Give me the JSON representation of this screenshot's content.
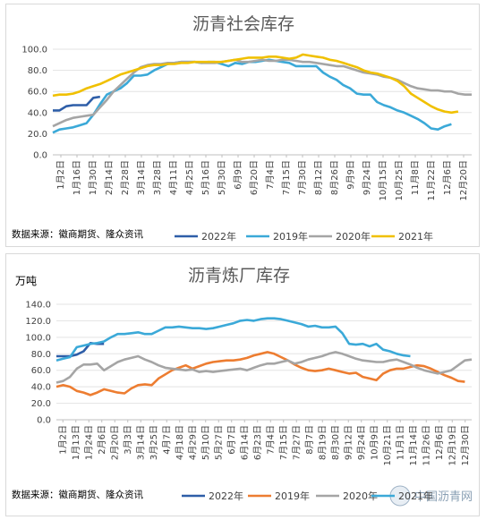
{
  "chart_data": [
    {
      "type": "line",
      "title": "沥青社会库存",
      "source": "数据来源：徽商期货、隆众资讯",
      "ylim": [
        0,
        100
      ],
      "yticks": [
        "0.0",
        "20.0",
        "40.0",
        "60.0",
        "80.0",
        "100.0"
      ],
      "xticks": [
        "1月2日",
        "1月16日",
        "1月30日",
        "2月14日",
        "2月28日",
        "3月14日",
        "3月28日",
        "4月11日",
        "4月25日",
        "5月16日",
        "5月30日",
        "6月9日",
        "6月20日",
        "7月4日",
        "7月15日",
        "7月30日",
        "8月12日",
        "8月26日",
        "9月9日",
        "9月24日",
        "10月15日",
        "10月25日",
        "11月8日",
        "11月22日",
        "12月6日",
        "12月20日"
      ],
      "grid": "horizontal",
      "legend": "bottom",
      "series": [
        {
          "name": "2022年",
          "color": "#2e5ea8",
          "values": [
            42,
            42,
            46,
            47,
            47,
            47,
            54,
            55
          ]
        },
        {
          "name": "2019年",
          "color": "#3ba9d8",
          "values": [
            21,
            24,
            25,
            26,
            28,
            30,
            38,
            48,
            57,
            60,
            63,
            68,
            75,
            75,
            76,
            80,
            83,
            86,
            87,
            88,
            88,
            88,
            87,
            88,
            88,
            86,
            84,
            87,
            86,
            88,
            88,
            89,
            90,
            89,
            88,
            87,
            84,
            84,
            84,
            84,
            78,
            74,
            71,
            66,
            63,
            58,
            57,
            57,
            50,
            47,
            45,
            42,
            40,
            37,
            34,
            30,
            25,
            24,
            27,
            29
          ]
        },
        {
          "name": "2020年",
          "color": "#a5a5a5",
          "values": [
            27,
            30,
            33,
            35,
            36,
            37,
            38,
            45,
            52,
            60,
            66,
            72,
            78,
            83,
            85,
            86,
            86,
            87,
            87,
            88,
            88,
            88,
            87,
            87,
            87,
            88,
            89,
            90,
            88,
            88,
            89,
            90,
            89,
            89,
            90,
            90,
            89,
            88,
            88,
            87,
            86,
            85,
            84,
            84,
            82,
            80,
            78,
            77,
            76,
            74,
            73,
            71,
            68,
            65,
            63,
            62,
            61,
            61,
            60,
            60,
            58,
            57,
            57
          ]
        },
        {
          "name": "2021年",
          "color": "#f0c000",
          "values": [
            56,
            57,
            57,
            58,
            60,
            63,
            65,
            67,
            70,
            73,
            76,
            78,
            80,
            82,
            84,
            85,
            85,
            86,
            86,
            87,
            87,
            88,
            88,
            88,
            88,
            88,
            89,
            90,
            91,
            92,
            92,
            92,
            93,
            93,
            92,
            91,
            92,
            95,
            94,
            93,
            92,
            90,
            89,
            87,
            85,
            83,
            80,
            78,
            77,
            75,
            73,
            70,
            65,
            58,
            54,
            50,
            46,
            43,
            41,
            40,
            41
          ]
        }
      ]
    },
    {
      "type": "line",
      "title": "沥青炼厂库存",
      "unit_label": "万吨",
      "source": "数据来源：徽商期货、隆众资讯",
      "ylim": [
        0,
        140
      ],
      "yticks": [
        "0.0",
        "20.0",
        "40.0",
        "60.0",
        "80.0",
        "100.0",
        "120.0",
        "140.0"
      ],
      "xticks": [
        "1月2日",
        "1月13日",
        "1月24日",
        "2月6日",
        "2月20日",
        "3月3日",
        "3月14日",
        "3月25日",
        "4月7日",
        "4月18日",
        "4月29日",
        "5月10日",
        "5月27日",
        "6月7日",
        "6月14日",
        "6月23日",
        "7月4日",
        "7月15日",
        "7月27日",
        "8月7日",
        "8月19日",
        "8月30日",
        "9月12日",
        "9月24日",
        "10月9日",
        "10月21日",
        "11月1日",
        "11月14日",
        "11月26日",
        "12月6日",
        "12月19日",
        "12月30日"
      ],
      "grid": "horizontal",
      "legend": "bottom",
      "series": [
        {
          "name": "2022年",
          "color": "#2e5ea8",
          "values": [
            77,
            77,
            77,
            79,
            83,
            93,
            92,
            92
          ]
        },
        {
          "name": "2019年",
          "color": "#ed7d31",
          "values": [
            40,
            42,
            40,
            35,
            33,
            30,
            33,
            37,
            35,
            33,
            32,
            38,
            42,
            43,
            42,
            50,
            55,
            60,
            63,
            66,
            62,
            65,
            68,
            70,
            71,
            72,
            72,
            73,
            75,
            78,
            80,
            82,
            80,
            76,
            72,
            67,
            63,
            60,
            59,
            60,
            62,
            60,
            58,
            56,
            57,
            52,
            50,
            48,
            56,
            60,
            62,
            62,
            64,
            66,
            65,
            62,
            58,
            54,
            51,
            47,
            46
          ]
        },
        {
          "name": "2020年",
          "color": "#a5a5a5",
          "values": [
            45,
            47,
            52,
            62,
            67,
            67,
            68,
            60,
            65,
            70,
            73,
            75,
            77,
            73,
            70,
            66,
            63,
            62,
            61,
            60,
            61,
            58,
            59,
            58,
            59,
            60,
            61,
            62,
            60,
            63,
            66,
            68,
            68,
            70,
            72,
            68,
            70,
            73,
            75,
            77,
            80,
            82,
            80,
            77,
            74,
            72,
            71,
            70,
            70,
            72,
            73,
            70,
            67,
            63,
            60,
            58,
            56,
            58,
            60,
            66,
            72,
            73
          ]
        },
        {
          "name": "2021年",
          "color": "#3ba9d8",
          "values": [
            72,
            74,
            76,
            88,
            90,
            92,
            93,
            95,
            100,
            104,
            104,
            105,
            106,
            104,
            104,
            108,
            112,
            112,
            113,
            112,
            111,
            111,
            110,
            111,
            113,
            115,
            117,
            120,
            121,
            120,
            122,
            123,
            123,
            122,
            120,
            118,
            116,
            113,
            114,
            112,
            112,
            113,
            105,
            92,
            91,
            92,
            89,
            92,
            85,
            83,
            80,
            78,
            77
          ]
        }
      ]
    }
  ],
  "watermark": "中国沥青网"
}
